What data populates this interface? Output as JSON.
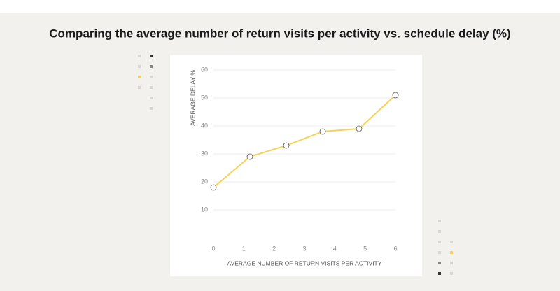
{
  "chart_data": {
    "type": "line",
    "title": "Comparing the average number of return visits per activity vs. schedule delay (%)",
    "x_label": "AVERAGE NUMBER OF RETURN VISITS PER ACTIVITY",
    "y_label": "AVERAGE DELAY %",
    "x": [
      0,
      1.2,
      2.4,
      3.6,
      4.8,
      6
    ],
    "values": [
      18,
      29,
      33,
      38,
      39,
      51
    ],
    "color": "#f5d35a",
    "xlim": [
      0,
      6
    ],
    "xticks": [
      0,
      1,
      2,
      3,
      4,
      5,
      6
    ],
    "ylim": [
      0,
      60
    ],
    "yticks": [
      10,
      20,
      30,
      40,
      50,
      60
    ],
    "grid": true
  }
}
